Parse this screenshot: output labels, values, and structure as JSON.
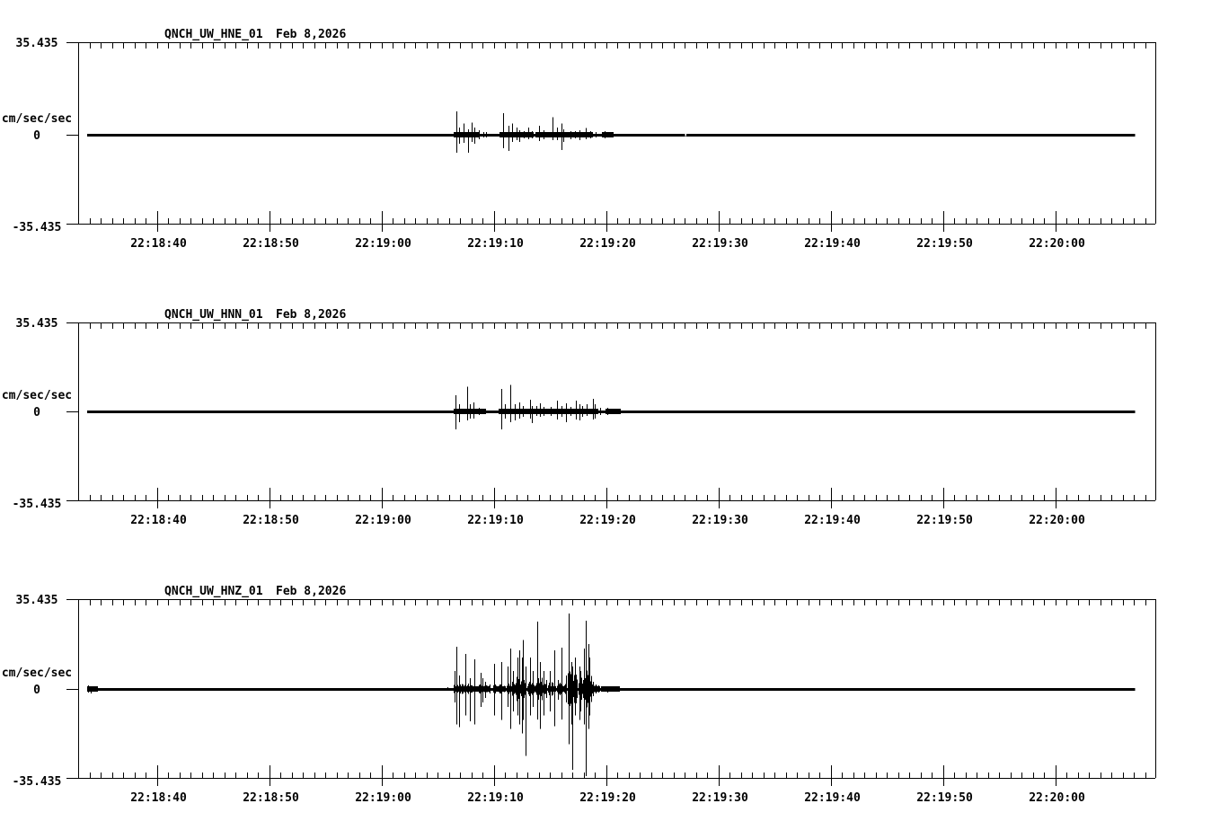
{
  "figure": {
    "background": "#ffffff",
    "ink": "#000000",
    "kind": "seismogram-strip-chart"
  },
  "chart_data": {
    "type": "line",
    "subtype": "seismogram",
    "title_date": "Feb 8,2026",
    "ylabel": "cm/sec/sec",
    "ylim": [
      -35.435,
      35.435
    ],
    "y_ticks": [
      {
        "v": 35.435,
        "label": "35.435"
      },
      {
        "v": 0,
        "label": "0"
      },
      {
        "v": -35.435,
        "label": "-35.435"
      }
    ],
    "x_start_time": "22:18:33",
    "x_duration_seconds": 95.9,
    "x_minor_tick_step_seconds": 1,
    "x_major_ticks": [
      {
        "t": 7,
        "label": "22:18:40"
      },
      {
        "t": 17,
        "label": "22:18:50"
      },
      {
        "t": 27,
        "label": "22:19:00"
      },
      {
        "t": 37,
        "label": "22:19:10"
      },
      {
        "t": 47,
        "label": "22:19:20"
      },
      {
        "t": 57,
        "label": "22:19:30"
      },
      {
        "t": 67,
        "label": "22:19:40"
      },
      {
        "t": 77,
        "label": "22:19:50"
      },
      {
        "t": 87,
        "label": "22:20:00"
      }
    ],
    "series": [
      {
        "name": "QNCH_UW_HNE_01",
        "baseline_value": 0,
        "spikes": [
          [
            33.7,
            8.9,
            7.1
          ],
          [
            33.9,
            2.8,
            3.5
          ],
          [
            34.3,
            4.3,
            3.2
          ],
          [
            34.7,
            2.1,
            7.1
          ],
          [
            35.0,
            4.6,
            2.8
          ],
          [
            35.3,
            2.8,
            3.5
          ],
          [
            35.7,
            1.8,
            1.8
          ],
          [
            36.1,
            1.1,
            1.1
          ],
          [
            36.3,
            1.1,
            1.1
          ],
          [
            37.8,
            8.2,
            5.3
          ],
          [
            38.3,
            3.5,
            6.4
          ],
          [
            38.6,
            4.3,
            2.8
          ],
          [
            39.0,
            2.8,
            2.1
          ],
          [
            39.3,
            1.8,
            2.8
          ],
          [
            39.7,
            1.4,
            1.4
          ],
          [
            40.1,
            2.8,
            1.8
          ],
          [
            40.4,
            1.4,
            1.4
          ],
          [
            41.0,
            3.5,
            2.5
          ],
          [
            41.4,
            1.8,
            1.8
          ],
          [
            42.2,
            6.7,
            2.1
          ],
          [
            42.6,
            2.8,
            2.1
          ],
          [
            43.0,
            4.3,
            6.0
          ],
          [
            43.2,
            2.1,
            2.8
          ],
          [
            43.8,
            1.4,
            1.8
          ],
          [
            44.2,
            1.4,
            1.4
          ],
          [
            44.6,
            1.8,
            2.1
          ],
          [
            45.2,
            2.5,
            1.8
          ],
          [
            45.6,
            1.4,
            1.4
          ],
          [
            46.1,
            1.1,
            1.1
          ],
          [
            46.9,
            1.4,
            1.4
          ],
          [
            47.3,
            1.1,
            1.1
          ]
        ],
        "envelope": [
          [
            33.4,
            35.6,
            1.1
          ],
          [
            37.5,
            40.5,
            0.9
          ],
          [
            40.7,
            45.8,
            0.7
          ],
          [
            46.6,
            47.6,
            0.6
          ]
        ],
        "trace_gaps": [
          54.1
        ]
      },
      {
        "name": "QNCH_UW_HNN_01",
        "baseline_value": 0,
        "spikes": [
          [
            33.6,
            6.4,
            7.1
          ],
          [
            33.9,
            2.8,
            4.3
          ],
          [
            34.6,
            9.9,
            3.5
          ],
          [
            34.9,
            2.8,
            2.8
          ],
          [
            35.2,
            3.5,
            2.8
          ],
          [
            35.7,
            1.4,
            1.4
          ],
          [
            36.1,
            1.1,
            1.1
          ],
          [
            37.7,
            8.9,
            7.1
          ],
          [
            38.0,
            2.8,
            2.8
          ],
          [
            38.5,
            10.6,
            4.3
          ],
          [
            38.9,
            2.8,
            3.5
          ],
          [
            39.3,
            3.5,
            2.8
          ],
          [
            39.6,
            2.1,
            2.1
          ],
          [
            40.2,
            4.6,
            2.8
          ],
          [
            40.4,
            2.1,
            4.6
          ],
          [
            40.8,
            2.1,
            1.8
          ],
          [
            41.1,
            3.2,
            2.1
          ],
          [
            41.4,
            1.8,
            1.8
          ],
          [
            42.1,
            1.8,
            1.8
          ],
          [
            42.6,
            4.3,
            3.2
          ],
          [
            43.0,
            2.1,
            2.1
          ],
          [
            43.4,
            3.2,
            4.3
          ],
          [
            43.8,
            1.8,
            1.8
          ],
          [
            44.3,
            4.3,
            3.2
          ],
          [
            44.6,
            2.8,
            3.5
          ],
          [
            44.9,
            2.1,
            2.1
          ],
          [
            45.3,
            2.8,
            1.8
          ],
          [
            45.8,
            5.0,
            3.2
          ],
          [
            46.0,
            2.8,
            2.8
          ],
          [
            46.5,
            1.4,
            1.4
          ],
          [
            47.1,
            1.4,
            1.4
          ],
          [
            47.4,
            1.1,
            1.1
          ]
        ],
        "envelope": [
          [
            33.4,
            36.3,
            1.1
          ],
          [
            37.4,
            46.3,
            0.9
          ],
          [
            46.9,
            48.3,
            0.5
          ]
        ],
        "trace_gaps": []
      },
      {
        "name": "QNCH_UW_HNZ_01",
        "baseline_value": 0,
        "spikes": [
          [
            0.9,
            1.4,
            1.4
          ],
          [
            1.1,
            1.1,
            1.8
          ],
          [
            1.4,
            1.1,
            1.1
          ],
          [
            32.9,
            0.7,
            0.7
          ],
          [
            33.5,
            7.1,
            5.3
          ],
          [
            33.7,
            16.7,
            14.2
          ],
          [
            33.9,
            5.3,
            15.2
          ],
          [
            34.5,
            13.8,
            10.6
          ],
          [
            34.9,
            4.3,
            12.8
          ],
          [
            35.3,
            11.7,
            14.2
          ],
          [
            35.8,
            6.4,
            7.1
          ],
          [
            36.0,
            4.3,
            5.3
          ],
          [
            36.2,
            2.8,
            3.5
          ],
          [
            36.6,
            1.8,
            1.8
          ],
          [
            37.0,
            9.9,
            10.6
          ],
          [
            37.7,
            10.6,
            12.4
          ],
          [
            38.2,
            8.9,
            7.1
          ],
          [
            38.5,
            15.9,
            16.0
          ],
          [
            38.7,
            7.1,
            8.9
          ],
          [
            39.1,
            12.4,
            10.6
          ],
          [
            39.3,
            15.2,
            14.2
          ],
          [
            39.5,
            12.4,
            17.7
          ],
          [
            39.6,
            19.4,
            12.4
          ],
          [
            39.8,
            8.9,
            26.6
          ],
          [
            40.2,
            12.4,
            10.6
          ],
          [
            40.5,
            7.1,
            7.1
          ],
          [
            40.9,
            26.6,
            12.1
          ],
          [
            41.1,
            10.6,
            16.0
          ],
          [
            41.4,
            7.1,
            10.6
          ],
          [
            41.7,
            3.5,
            3.5
          ],
          [
            42.0,
            7.1,
            8.9
          ],
          [
            42.4,
            15.2,
            14.9
          ],
          [
            42.7,
            3.5,
            4.3
          ],
          [
            43.0,
            16.3,
            12.1
          ],
          [
            43.4,
            5.3,
            5.3
          ],
          [
            43.7,
            29.8,
            22.0
          ],
          [
            43.9,
            10.6,
            14.2
          ],
          [
            44.0,
            8.9,
            32.3
          ],
          [
            44.2,
            12.4,
            10.6
          ],
          [
            44.6,
            8.9,
            12.4
          ],
          [
            44.7,
            7.1,
            8.9
          ],
          [
            45.0,
            16.0,
            14.2
          ],
          [
            45.2,
            26.9,
            34.7
          ],
          [
            45.4,
            17.7,
            16.0
          ],
          [
            45.5,
            12.4,
            10.6
          ],
          [
            45.8,
            2.8,
            2.8
          ],
          [
            46.1,
            1.8,
            1.8
          ],
          [
            46.3,
            1.4,
            1.4
          ],
          [
            46.8,
            1.1,
            1.1
          ],
          [
            47.1,
            1.1,
            1.4
          ],
          [
            47.5,
            0.7,
            1.1
          ],
          [
            47.9,
            0.7,
            0.7
          ]
        ],
        "envelope": [
          [
            0.8,
            1.7,
            0.7
          ],
          [
            33.4,
            36.6,
            2.1
          ],
          [
            36.9,
            38.0,
            1.8
          ],
          [
            38.1,
            39.0,
            3.2
          ],
          [
            39.0,
            39.9,
            5.7
          ],
          [
            40.0,
            40.7,
            3.2
          ],
          [
            40.7,
            41.7,
            4.6
          ],
          [
            41.8,
            42.5,
            2.8
          ],
          [
            42.6,
            43.5,
            2.8
          ],
          [
            43.6,
            44.4,
            7.1
          ],
          [
            44.5,
            45.0,
            5.3
          ],
          [
            45.0,
            45.7,
            8.5
          ],
          [
            45.7,
            46.4,
            1.8
          ],
          [
            46.5,
            48.2,
            0.7
          ]
        ],
        "trace_gaps": []
      }
    ]
  }
}
